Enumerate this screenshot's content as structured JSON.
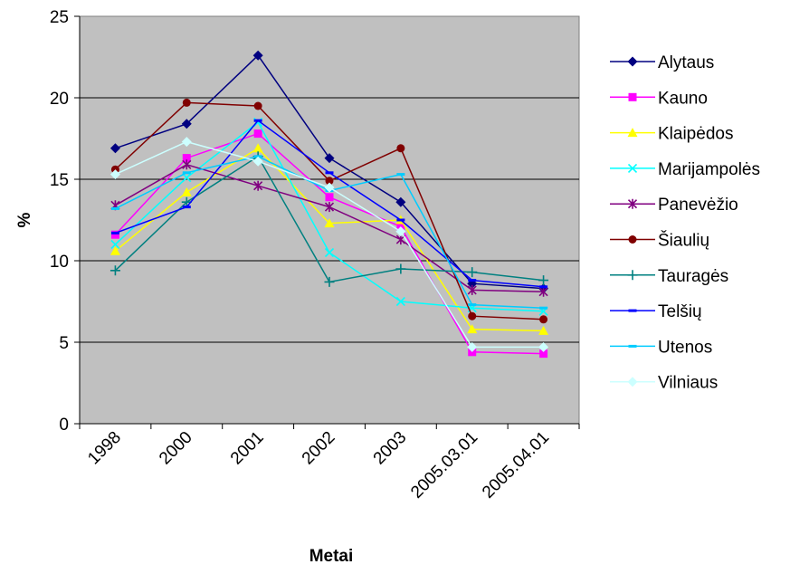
{
  "chart_data": {
    "type": "line",
    "title": "",
    "xlabel": "Metai",
    "ylabel": "%",
    "ylim": [
      0,
      25
    ],
    "yticks": [
      0,
      5,
      10,
      15,
      20,
      25
    ],
    "grid": true,
    "legend_position": "right",
    "plot_background": "#c0c0c0",
    "categories": [
      "1998",
      "2000",
      "2001",
      "2002",
      "2003",
      "2005.03.01",
      "2005.04.01"
    ],
    "series": [
      {
        "name": "Alytaus",
        "color": "#000080",
        "marker": "diamond",
        "values": [
          16.9,
          18.4,
          22.6,
          16.3,
          13.6,
          8.6,
          8.3
        ]
      },
      {
        "name": "Kauno",
        "color": "#ff00ff",
        "marker": "square",
        "values": [
          11.6,
          16.3,
          17.8,
          13.9,
          12.1,
          4.4,
          4.3
        ]
      },
      {
        "name": "Klaipėdos",
        "color": "#ffff00",
        "marker": "triangle",
        "values": [
          10.6,
          14.2,
          16.9,
          12.3,
          12.5,
          5.8,
          5.7
        ]
      },
      {
        "name": "Marijampolės",
        "color": "#00ffff",
        "marker": "x",
        "values": [
          11.0,
          15.1,
          18.5,
          10.5,
          7.5,
          7.1,
          6.9
        ]
      },
      {
        "name": "Panevėžio",
        "color": "#800080",
        "marker": "star",
        "values": [
          13.4,
          15.9,
          14.6,
          13.3,
          11.3,
          8.2,
          8.1
        ]
      },
      {
        "name": "Šiaulių",
        "color": "#800000",
        "marker": "circle",
        "values": [
          15.6,
          19.7,
          19.5,
          14.9,
          16.9,
          6.6,
          6.4
        ]
      },
      {
        "name": "Tauragės",
        "color": "#008080",
        "marker": "plus",
        "values": [
          9.4,
          13.6,
          16.4,
          8.7,
          9.5,
          9.3,
          8.8
        ]
      },
      {
        "name": "Telšių",
        "color": "#0000ff",
        "marker": "dash",
        "values": [
          11.7,
          13.3,
          18.6,
          15.4,
          12.5,
          8.8,
          8.4
        ]
      },
      {
        "name": "Utenos",
        "color": "#00ccff",
        "marker": "dash",
        "values": [
          13.2,
          15.4,
          16.4,
          14.3,
          15.3,
          7.3,
          7.1
        ]
      },
      {
        "name": "Vilniaus",
        "color": "#ccffff",
        "marker": "diamond",
        "values": [
          15.3,
          17.3,
          16.1,
          14.5,
          11.8,
          4.7,
          4.7
        ]
      }
    ]
  }
}
